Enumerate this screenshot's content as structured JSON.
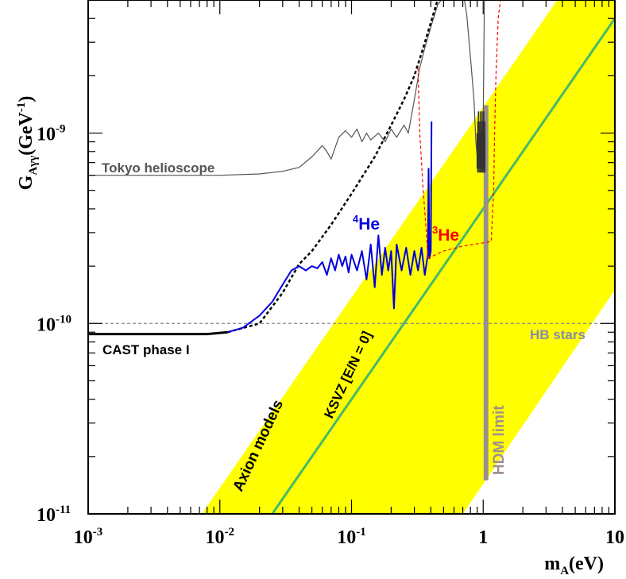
{
  "chart_data": {
    "type": "line",
    "x_scale": "log",
    "y_scale": "log",
    "xlim": [
      0.001,
      10
    ],
    "ylim": [
      1e-11,
      5e-09
    ],
    "xlabel": "m_A (eV)",
    "ylabel": "G_Aγγ (GeV^-1)",
    "x_ticks": [
      {
        "value": 0.001,
        "base": "10",
        "exp": "-3"
      },
      {
        "value": 0.01,
        "base": "10",
        "exp": "-2"
      },
      {
        "value": 0.1,
        "base": "10",
        "exp": "-1"
      },
      {
        "value": 1,
        "base": "1",
        "exp": ""
      },
      {
        "value": 10,
        "base": "10",
        "exp": ""
      }
    ],
    "y_ticks": [
      {
        "value": 1e-11,
        "base": "10",
        "exp": "-11"
      },
      {
        "value": 1e-10,
        "base": "10",
        "exp": "-10"
      },
      {
        "value": 1e-09,
        "base": "10",
        "exp": "-9"
      }
    ],
    "annotations": {
      "tokyo": "Tokyo helioscope",
      "cast": "CAST phase I",
      "he4_sup": "4",
      "he4": "He",
      "he3_sup": "3",
      "he3": "He",
      "hb": "HB stars",
      "axion": "Axion models",
      "ksvz": "KSVZ [E/N = 0]",
      "hdm": "HDM limit"
    },
    "series": [
      {
        "name": "Tokyo helioscope",
        "color": "#555555",
        "style": "solid",
        "points": [
          [
            0.001,
            6e-10
          ],
          [
            0.01,
            6e-10
          ],
          [
            0.02,
            6.1e-10
          ],
          [
            0.03,
            6.3e-10
          ],
          [
            0.04,
            6.6e-10
          ],
          [
            0.05,
            7.5e-10
          ],
          [
            0.06,
            8.6e-10
          ],
          [
            0.065,
            8e-10
          ],
          [
            0.07,
            7.3e-10
          ],
          [
            0.08,
            9.5e-10
          ],
          [
            0.09,
            1.03e-09
          ],
          [
            0.1,
            9.5e-10
          ],
          [
            0.11,
            1.05e-09
          ],
          [
            0.12,
            9e-10
          ],
          [
            0.13,
            1e-09
          ],
          [
            0.14,
            9.2e-10
          ],
          [
            0.16,
            1e-09
          ],
          [
            0.18,
            9e-10
          ],
          [
            0.2,
            1.05e-09
          ],
          [
            0.22,
            9.5e-10
          ],
          [
            0.25,
            1.1e-09
          ],
          [
            0.27,
            1e-09
          ],
          [
            0.3,
            1.5e-09
          ],
          [
            0.33,
            2.2e-09
          ],
          [
            0.36,
            2.8e-09
          ],
          [
            0.4,
            3.6e-09
          ],
          [
            0.45,
            4.7e-09
          ],
          [
            0.48,
            5e-09
          ],
          [
            0.72,
            5e-09
          ],
          [
            0.75,
            4.2e-09
          ],
          [
            0.8,
            2.5e-09
          ],
          [
            0.85,
            1.5e-09
          ],
          [
            0.88,
            9e-10
          ],
          [
            0.9,
            7.5e-10
          ],
          [
            0.93,
            1e-09
          ],
          [
            0.96,
            7e-10
          ],
          [
            1.0,
            1.2e-09
          ],
          [
            1.02,
            5e-09
          ]
        ]
      },
      {
        "name": "CAST phase I",
        "color": "#000000",
        "style": "solid",
        "points": [
          [
            0.001,
            8.8e-11
          ],
          [
            0.005,
            8.8e-11
          ],
          [
            0.008,
            8.8e-11
          ],
          [
            0.0115,
            9e-11
          ]
        ]
      },
      {
        "name": "CAST extrapolation",
        "color": "#000000",
        "style": "dashed",
        "points": [
          [
            0.0115,
            9e-11
          ],
          [
            0.02,
            1e-10
          ],
          [
            0.03,
            1.45e-10
          ],
          [
            0.04,
            2.05e-10
          ],
          [
            0.05,
            2.4e-10
          ],
          [
            0.07,
            3.3e-10
          ],
          [
            0.1,
            4.8e-10
          ],
          [
            0.15,
            7.5e-10
          ],
          [
            0.2,
            1.1e-09
          ],
          [
            0.25,
            1.5e-09
          ],
          [
            0.3,
            2e-09
          ],
          [
            0.35,
            2.8e-09
          ],
          [
            0.4,
            3.8e-09
          ],
          [
            0.45,
            5e-09
          ]
        ]
      },
      {
        "name": "4He",
        "color": "#0000dd",
        "style": "solid",
        "points": [
          [
            0.0115,
            9e-11
          ],
          [
            0.015,
            9.5e-11
          ],
          [
            0.02,
            1.1e-10
          ],
          [
            0.025,
            1.3e-10
          ],
          [
            0.03,
            1.6e-10
          ],
          [
            0.035,
            1.9e-10
          ],
          [
            0.04,
            2e-10
          ],
          [
            0.045,
            1.9e-10
          ],
          [
            0.05,
            2e-10
          ],
          [
            0.055,
            1.95e-10
          ],
          [
            0.06,
            2.1e-10
          ],
          [
            0.065,
            1.8e-10
          ],
          [
            0.07,
            2.2e-10
          ],
          [
            0.075,
            1.9e-10
          ],
          [
            0.08,
            2.3e-10
          ],
          [
            0.085,
            2e-10
          ],
          [
            0.09,
            2.25e-10
          ],
          [
            0.095,
            1.85e-10
          ],
          [
            0.1,
            2.3e-10
          ],
          [
            0.11,
            1.9e-10
          ],
          [
            0.12,
            2.4e-10
          ],
          [
            0.13,
            1.7e-10
          ],
          [
            0.14,
            2.6e-10
          ],
          [
            0.15,
            1.55e-10
          ],
          [
            0.16,
            2.9e-10
          ],
          [
            0.17,
            1.8e-10
          ],
          [
            0.18,
            2.5e-10
          ],
          [
            0.19,
            1.9e-10
          ],
          [
            0.2,
            2.4e-10
          ],
          [
            0.21,
            1.2e-10
          ],
          [
            0.22,
            2.6e-10
          ],
          [
            0.24,
            1.9e-10
          ],
          [
            0.26,
            2.5e-10
          ],
          [
            0.28,
            1.8e-10
          ],
          [
            0.3,
            2.4e-10
          ],
          [
            0.32,
            1.9e-10
          ],
          [
            0.34,
            2.5e-10
          ],
          [
            0.36,
            1.8e-10
          ],
          [
            0.38,
            2.3e-10
          ],
          [
            0.385,
            6.5e-10
          ],
          [
            0.39,
            2.2e-10
          ],
          [
            0.4,
            2.4e-10
          ],
          [
            0.405,
            1.15e-09
          ]
        ]
      },
      {
        "name": "3He",
        "color": "#ff0000",
        "style": "dashed",
        "points": [
          [
            0.38,
            2.2e-10
          ],
          [
            0.5,
            2.4e-10
          ],
          [
            0.7,
            2.55e-10
          ],
          [
            1.0,
            2.65e-10
          ],
          [
            1.15,
            2.7e-10
          ],
          [
            1.17,
            3.5e-10
          ],
          [
            1.2,
            5e-10
          ],
          [
            1.22,
            1e-09
          ],
          [
            1.25,
            2e-09
          ],
          [
            1.3,
            4e-09
          ],
          [
            1.35,
            5e-09
          ]
        ]
      },
      {
        "name": "3He upper branch",
        "color": "#ff0000",
        "style": "dashed",
        "points": [
          [
            0.32,
            2.2e-09
          ],
          [
            0.33,
            1e-09
          ],
          [
            0.35,
            5e-10
          ],
          [
            0.37,
            3e-10
          ],
          [
            0.38,
            2.2e-10
          ]
        ]
      }
    ],
    "hb_limit": 1e-10,
    "hdm_limit": {
      "m": 1.05,
      "g_min": 1.5e-11,
      "g_max": 1.4e-09
    },
    "axion_band": {
      "lower": [
        [
          0.7,
          1e-11
        ],
        [
          10,
          1.5e-10
        ]
      ],
      "upper": [
        [
          0.0073,
          1e-11
        ],
        [
          10,
          1.37e-08
        ]
      ]
    },
    "ksvz": [
      [
        0.025,
        1e-11
      ],
      [
        10,
        4e-09
      ]
    ],
    "colors": {
      "band": "#ffff00",
      "ksvz": "#44bb66",
      "hdm": "#998f8f",
      "hb_line": "#888888",
      "hb_text": "#8a8aa8",
      "tokyo_text": "#555555",
      "he4_text": "#0000dd",
      "he3_text": "#ff0000",
      "hdm_text": "#a09090"
    }
  }
}
